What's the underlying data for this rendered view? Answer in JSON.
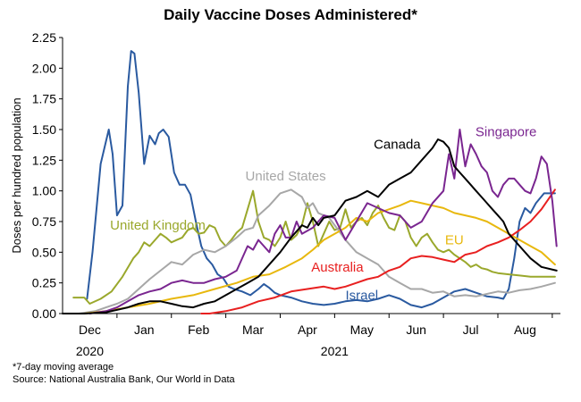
{
  "title": "Daily Vaccine Doses Administered*",
  "footnote": "*7-day moving average",
  "source": "Source: National Australia Bank, Our World in Data",
  "chart_data": {
    "type": "line",
    "title": "Daily Vaccine Doses Administered*",
    "ylabel": "Doses per hundred population",
    "xlabel": "",
    "ylim": [
      0,
      2.25
    ],
    "xlim": [
      0,
      9.15
    ],
    "yticks": [
      "0.00",
      "0.25",
      "0.50",
      "0.75",
      "1.00",
      "1.25",
      "1.50",
      "1.75",
      "2.00",
      "2.25"
    ],
    "xticks": [
      {
        "label": "Dec",
        "pos": 0.5
      },
      {
        "label": "Jan",
        "pos": 1.5
      },
      {
        "label": "Feb",
        "pos": 2.5
      },
      {
        "label": "Mar",
        "pos": 3.5
      },
      {
        "label": "Apr",
        "pos": 4.5
      },
      {
        "label": "May",
        "pos": 5.5
      },
      {
        "label": "Jun",
        "pos": 6.5
      },
      {
        "label": "Jul",
        "pos": 7.5
      },
      {
        "label": "Aug",
        "pos": 8.5
      }
    ],
    "year_labels": [
      {
        "label": "2020",
        "pos": 0.5
      },
      {
        "label": "2021",
        "pos": 5.0
      }
    ],
    "grid": false,
    "legend": "inline labels",
    "series": [
      {
        "name": "Israel",
        "color": "#2a5aa0",
        "x": [
          0.45,
          0.55,
          0.7,
          0.85,
          0.92,
          1.0,
          1.1,
          1.2,
          1.26,
          1.32,
          1.4,
          1.5,
          1.6,
          1.7,
          1.77,
          1.85,
          1.95,
          2.05,
          2.15,
          2.25,
          2.35,
          2.45,
          2.55,
          2.65,
          2.75,
          2.85,
          2.95,
          3.05,
          3.15,
          3.3,
          3.45,
          3.6,
          3.7,
          3.8,
          3.9,
          4.0,
          4.2,
          4.4,
          4.6,
          4.8,
          5.0,
          5.2,
          5.4,
          5.6,
          5.8,
          6.0,
          6.2,
          6.4,
          6.6,
          6.8,
          7.0,
          7.2,
          7.4,
          7.6,
          7.8,
          8.0,
          8.1,
          8.2,
          8.3,
          8.4,
          8.5,
          8.6,
          8.7,
          8.85,
          9.05
        ],
        "values": [
          0.12,
          0.5,
          1.22,
          1.5,
          1.3,
          0.8,
          0.88,
          1.85,
          2.14,
          2.12,
          1.8,
          1.22,
          1.45,
          1.38,
          1.47,
          1.5,
          1.44,
          1.15,
          1.05,
          1.05,
          0.97,
          0.75,
          0.55,
          0.45,
          0.4,
          0.32,
          0.29,
          0.22,
          0.2,
          0.18,
          0.15,
          0.2,
          0.24,
          0.21,
          0.17,
          0.15,
          0.13,
          0.1,
          0.08,
          0.07,
          0.08,
          0.1,
          0.11,
          0.1,
          0.12,
          0.15,
          0.12,
          0.07,
          0.05,
          0.08,
          0.13,
          0.18,
          0.2,
          0.17,
          0.14,
          0.13,
          0.12,
          0.2,
          0.45,
          0.75,
          0.86,
          0.82,
          0.9,
          0.98,
          0.98
        ]
      },
      {
        "name": "United Kingdom",
        "color": "#9aa82c",
        "x": [
          0.2,
          0.4,
          0.5,
          0.7,
          0.9,
          1.1,
          1.3,
          1.4,
          1.5,
          1.6,
          1.7,
          1.8,
          1.9,
          2.0,
          2.1,
          2.2,
          2.3,
          2.4,
          2.5,
          2.6,
          2.7,
          2.8,
          2.9,
          3.0,
          3.1,
          3.2,
          3.3,
          3.4,
          3.5,
          3.6,
          3.7,
          3.8,
          3.9,
          4.0,
          4.1,
          4.2,
          4.3,
          4.4,
          4.5,
          4.6,
          4.7,
          4.8,
          4.9,
          5.0,
          5.1,
          5.2,
          5.3,
          5.4,
          5.5,
          5.6,
          5.7,
          5.8,
          5.9,
          6.0,
          6.1,
          6.2,
          6.3,
          6.4,
          6.5,
          6.6,
          6.7,
          6.8,
          6.9,
          7.0,
          7.1,
          7.2,
          7.3,
          7.4,
          7.5,
          7.6,
          7.7,
          7.8,
          7.9,
          8.0,
          8.2,
          8.4,
          8.6,
          8.8,
          9.05
        ],
        "values": [
          0.13,
          0.13,
          0.08,
          0.12,
          0.18,
          0.3,
          0.45,
          0.5,
          0.58,
          0.55,
          0.6,
          0.65,
          0.62,
          0.58,
          0.6,
          0.62,
          0.68,
          0.7,
          0.65,
          0.66,
          0.72,
          0.7,
          0.6,
          0.55,
          0.6,
          0.66,
          0.7,
          0.85,
          1.0,
          0.75,
          0.62,
          0.6,
          0.55,
          0.62,
          0.75,
          0.6,
          0.64,
          0.72,
          0.9,
          0.75,
          0.55,
          0.65,
          0.75,
          0.68,
          0.7,
          0.85,
          0.7,
          0.75,
          0.78,
          0.72,
          0.82,
          0.88,
          0.78,
          0.7,
          0.68,
          0.8,
          0.75,
          0.62,
          0.55,
          0.62,
          0.65,
          0.58,
          0.52,
          0.5,
          0.52,
          0.48,
          0.45,
          0.42,
          0.38,
          0.4,
          0.37,
          0.36,
          0.34,
          0.33,
          0.32,
          0.31,
          0.3,
          0.3,
          0.3
        ]
      },
      {
        "name": "United States",
        "color": "#a7a7a7",
        "x": [
          0.3,
          0.6,
          0.8,
          1.0,
          1.2,
          1.4,
          1.6,
          1.8,
          2.0,
          2.2,
          2.4,
          2.6,
          2.8,
          3.0,
          3.2,
          3.35,
          3.5,
          3.6,
          3.8,
          4.0,
          4.2,
          4.4,
          4.5,
          4.6,
          4.7,
          4.8,
          4.9,
          5.0,
          5.2,
          5.4,
          5.6,
          5.8,
          6.0,
          6.2,
          6.4,
          6.6,
          6.8,
          7.0,
          7.2,
          7.4,
          7.6,
          7.8,
          8.0,
          8.2,
          8.4,
          8.6,
          8.8,
          9.05
        ],
        "values": [
          0.0,
          0.02,
          0.05,
          0.08,
          0.12,
          0.2,
          0.28,
          0.35,
          0.42,
          0.4,
          0.48,
          0.52,
          0.5,
          0.55,
          0.62,
          0.68,
          0.7,
          0.8,
          0.88,
          0.98,
          1.01,
          0.95,
          0.86,
          0.9,
          0.82,
          0.8,
          0.78,
          0.72,
          0.6,
          0.5,
          0.45,
          0.4,
          0.3,
          0.25,
          0.2,
          0.2,
          0.17,
          0.18,
          0.14,
          0.15,
          0.14,
          0.16,
          0.18,
          0.17,
          0.19,
          0.2,
          0.22,
          0.25
        ]
      },
      {
        "name": "EU",
        "color": "#e8b80e",
        "x": [
          0.4,
          0.8,
          1.2,
          1.6,
          2.0,
          2.4,
          2.8,
          3.2,
          3.5,
          3.8,
          4.1,
          4.4,
          4.6,
          4.8,
          5.0,
          5.2,
          5.4,
          5.6,
          5.8,
          6.0,
          6.2,
          6.4,
          6.6,
          6.8,
          7.0,
          7.2,
          7.4,
          7.6,
          7.8,
          8.0,
          8.2,
          8.4,
          8.6,
          8.8,
          9.05
        ],
        "values": [
          0.0,
          0.02,
          0.05,
          0.08,
          0.12,
          0.15,
          0.2,
          0.25,
          0.3,
          0.32,
          0.38,
          0.45,
          0.52,
          0.6,
          0.65,
          0.7,
          0.78,
          0.75,
          0.82,
          0.85,
          0.88,
          0.92,
          0.9,
          0.88,
          0.86,
          0.82,
          0.8,
          0.78,
          0.75,
          0.7,
          0.65,
          0.6,
          0.55,
          0.5,
          0.4
        ]
      },
      {
        "name": "Australia",
        "color": "#e82020",
        "x": [
          2.55,
          2.7,
          3.0,
          3.3,
          3.6,
          3.9,
          4.2,
          4.5,
          4.8,
          5.0,
          5.2,
          5.4,
          5.6,
          5.8,
          6.0,
          6.2,
          6.4,
          6.6,
          6.8,
          7.0,
          7.2,
          7.4,
          7.6,
          7.8,
          8.0,
          8.2,
          8.4,
          8.6,
          8.8,
          9.05
        ],
        "values": [
          0.0,
          0.0,
          0.02,
          0.05,
          0.1,
          0.13,
          0.18,
          0.2,
          0.22,
          0.2,
          0.22,
          0.25,
          0.28,
          0.3,
          0.35,
          0.38,
          0.45,
          0.47,
          0.46,
          0.44,
          0.42,
          0.48,
          0.5,
          0.55,
          0.58,
          0.62,
          0.68,
          0.75,
          0.85,
          1.01
        ]
      },
      {
        "name": "Singapore",
        "color": "#7a2690",
        "x": [
          0.5,
          0.8,
          1.0,
          1.2,
          1.4,
          1.6,
          1.8,
          2.0,
          2.2,
          2.4,
          2.6,
          2.8,
          3.0,
          3.2,
          3.4,
          3.5,
          3.6,
          3.7,
          3.8,
          3.9,
          4.0,
          4.1,
          4.2,
          4.3,
          4.4,
          4.6,
          4.8,
          5.0,
          5.2,
          5.4,
          5.6,
          5.8,
          6.0,
          6.2,
          6.4,
          6.6,
          6.8,
          7.0,
          7.1,
          7.2,
          7.3,
          7.4,
          7.5,
          7.6,
          7.7,
          7.8,
          7.9,
          8.0,
          8.1,
          8.2,
          8.3,
          8.4,
          8.5,
          8.6,
          8.7,
          8.8,
          8.9,
          9.0,
          9.08
        ],
        "values": [
          0.0,
          0.02,
          0.05,
          0.1,
          0.15,
          0.18,
          0.2,
          0.25,
          0.27,
          0.25,
          0.25,
          0.28,
          0.3,
          0.35,
          0.55,
          0.52,
          0.6,
          0.55,
          0.5,
          0.65,
          0.72,
          0.62,
          0.62,
          0.75,
          0.65,
          0.7,
          0.8,
          0.78,
          0.6,
          0.75,
          0.9,
          0.86,
          0.82,
          0.8,
          0.7,
          0.75,
          0.9,
          1.0,
          1.3,
          1.1,
          1.5,
          1.2,
          1.38,
          1.3,
          1.2,
          1.15,
          1.0,
          0.95,
          1.05,
          1.1,
          1.1,
          1.05,
          1.0,
          0.98,
          1.1,
          1.28,
          1.22,
          0.92,
          0.55
        ]
      },
      {
        "name": "Canada",
        "color": "#000000",
        "x": [
          0.0,
          0.4,
          0.8,
          1.2,
          1.4,
          1.6,
          1.8,
          2.0,
          2.2,
          2.4,
          2.6,
          2.8,
          3.0,
          3.2,
          3.4,
          3.6,
          3.8,
          4.0,
          4.2,
          4.4,
          4.5,
          4.6,
          4.7,
          4.8,
          5.0,
          5.2,
          5.4,
          5.6,
          5.8,
          6.0,
          6.2,
          6.4,
          6.6,
          6.8,
          6.9,
          7.0,
          7.1,
          7.2,
          7.3,
          7.4,
          7.5,
          7.6,
          7.7,
          7.8,
          7.9,
          8.0,
          8.1,
          8.2,
          8.4,
          8.6,
          8.8,
          9.08
        ],
        "values": [
          0.0,
          0.0,
          0.01,
          0.05,
          0.08,
          0.1,
          0.1,
          0.08,
          0.06,
          0.05,
          0.08,
          0.1,
          0.15,
          0.2,
          0.25,
          0.3,
          0.4,
          0.5,
          0.62,
          0.72,
          0.7,
          0.78,
          0.72,
          0.78,
          0.8,
          0.92,
          0.95,
          1.0,
          0.95,
          1.05,
          1.1,
          1.15,
          1.25,
          1.35,
          1.42,
          1.4,
          1.35,
          1.2,
          1.15,
          1.1,
          1.05,
          1.0,
          0.95,
          0.9,
          0.85,
          0.8,
          0.75,
          0.65,
          0.55,
          0.45,
          0.38,
          0.35
        ]
      }
    ],
    "annotations": [
      {
        "text": "Israel",
        "color": "#2a5aa0",
        "at": [
          5.5,
          0.15
        ]
      },
      {
        "text": "United Kingdom",
        "color": "#9aa82c",
        "at": [
          1.75,
          0.72
        ]
      },
      {
        "text": "United States",
        "color": "#a7a7a7",
        "at": [
          4.1,
          1.12
        ]
      },
      {
        "text": "EU",
        "color": "#e8b80e",
        "at": [
          7.2,
          0.6
        ]
      },
      {
        "text": "Australia",
        "color": "#e82020",
        "at": [
          5.05,
          0.38
        ]
      },
      {
        "text": "Singapore",
        "color": "#7a2690",
        "at": [
          8.15,
          1.48
        ]
      },
      {
        "text": "Canada",
        "color": "#000000",
        "at": [
          6.15,
          1.38
        ]
      }
    ]
  }
}
